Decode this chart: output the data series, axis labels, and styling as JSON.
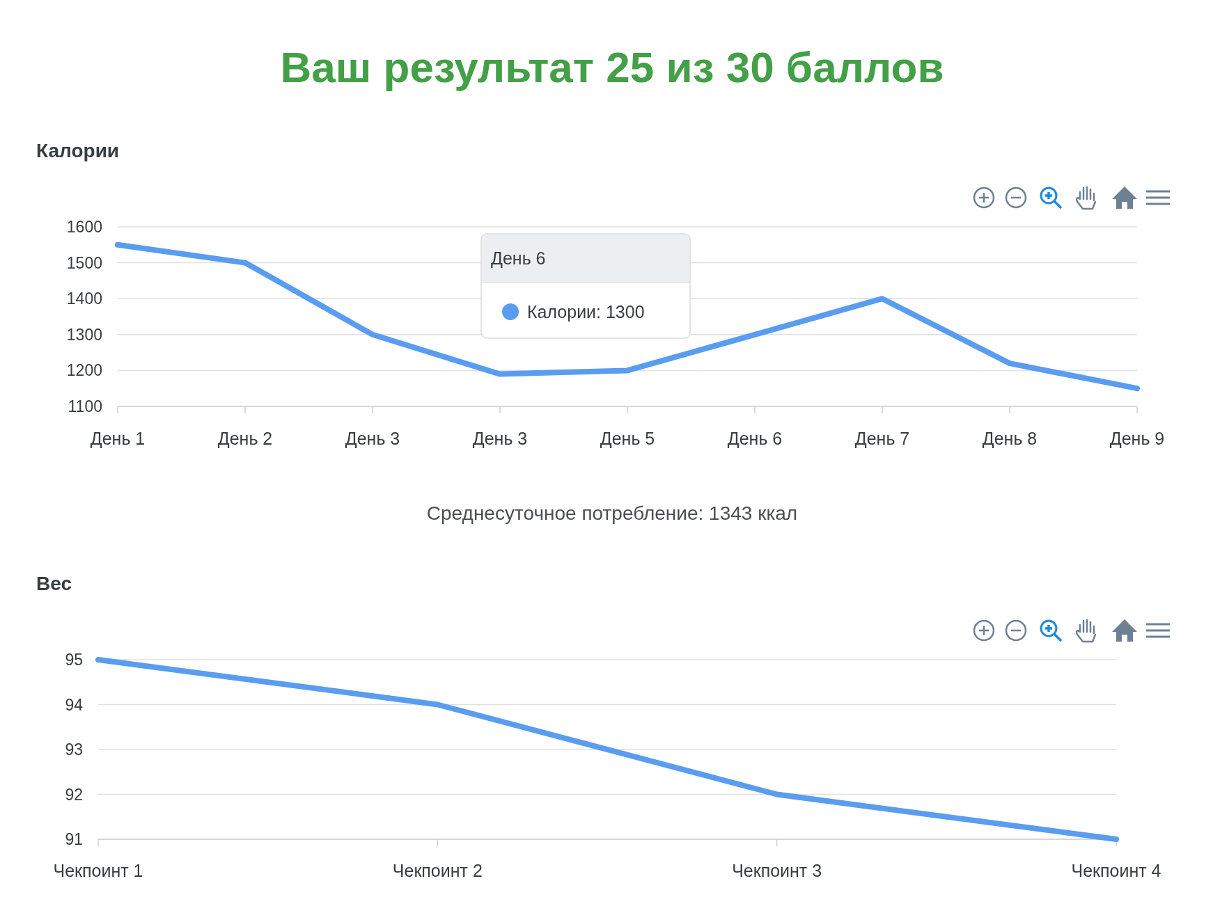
{
  "chart_data": [
    {
      "type": "line",
      "title": "Ваш результат 25 из 30 баллов",
      "subtitle": "Калории",
      "categories": [
        "День 1",
        "День 2",
        "День 3",
        "День 3",
        "День 5",
        "День 6",
        "День 7",
        "День 8",
        "День 9"
      ],
      "series": [
        {
          "color": "#5a9cf0",
          "values": [
            1550,
            1500,
            1300,
            1190,
            1200,
            1300,
            1400,
            1220,
            1150
          ]
        }
      ],
      "ylim": [
        1100,
        1600
      ],
      "yticks": [
        1100,
        1200,
        1300,
        1400,
        1500,
        1600
      ],
      "grid": "y",
      "marker": "none",
      "line_style": "solid",
      "annotations": [
        "Среднесуточное потребление: 1343 ккал",
        "День 6",
        "Калории: 1300"
      ]
    },
    {
      "type": "line",
      "title": "Вес",
      "categories": [
        "Чекпоинт 1",
        "Чекпоинт 2",
        "Чекпоинт 3",
        "Чекпоинт 4"
      ],
      "series": [
        {
          "color": "#5a9cf0",
          "values": [
            95,
            94,
            92,
            91
          ]
        }
      ],
      "ylim": [
        91,
        95
      ],
      "yticks": [
        91,
        92,
        93,
        94,
        95
      ],
      "grid": "y",
      "marker": "none",
      "line_style": "solid"
    }
  ]
}
